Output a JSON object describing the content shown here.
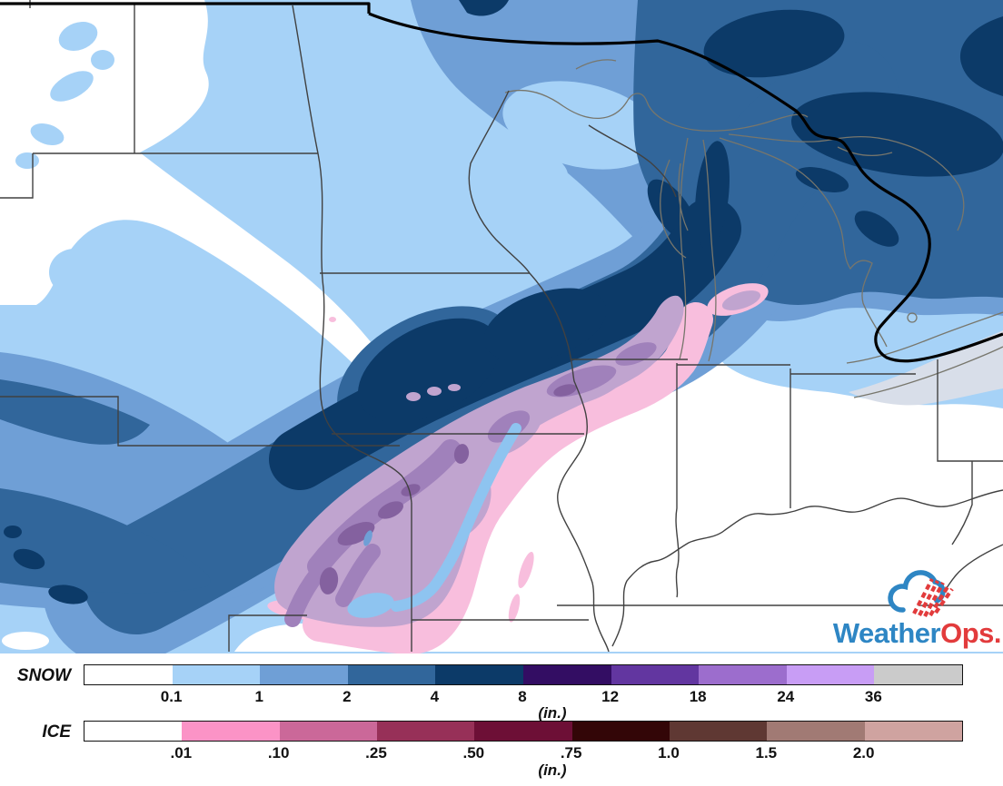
{
  "logo": {
    "text_primary": "Weather",
    "text_secondary": "Ops.",
    "primary_color": "#2E86C4",
    "secondary_color": "#E23B3C"
  },
  "legends": {
    "snow": {
      "label": "SNOW",
      "units_label": "(in.)",
      "tick_labels": [
        "0.1",
        "1",
        "2",
        "4",
        "8",
        "12",
        "18",
        "24",
        "36"
      ],
      "segment_palette_keys": [
        "snow_0",
        "snow_01",
        "snow_1",
        "snow_2",
        "snow_4",
        "snow_8",
        "snow_12",
        "snow_18",
        "snow_24",
        "snow_36"
      ]
    },
    "ice": {
      "label": "ICE",
      "units_label": "(in.)",
      "tick_labels": [
        ".01",
        ".10",
        ".25",
        ".50",
        ".75",
        "1.0",
        "1.5",
        "2.0"
      ],
      "segment_palette_keys": [
        "ice_0",
        "ice_01",
        "ice_10",
        "ice_25",
        "ice_50",
        "ice_75",
        "ice_1_0",
        "ice_1_5",
        "ice_2_0"
      ]
    }
  },
  "palette": {
    "snow_0": "#ffffff",
    "snow_01": "#a6d2f7",
    "snow_1": "#6f9fd6",
    "snow_2": "#31669b",
    "snow_4": "#0c3a68",
    "snow_8": "#330d63",
    "snow_12": "#6236a0",
    "snow_18": "#9c6dcd",
    "snow_24": "#c89df5",
    "snow_36": "#cbcbcb",
    "ice_0": "#ffffff",
    "ice_01": "#fb93c6",
    "ice_10": "#cb6899",
    "ice_25": "#973058",
    "ice_50": "#6d0f36",
    "ice_75": "#330607",
    "ice_1_0": "#5f3833",
    "ice_1_5": "#a17a74",
    "ice_2_0": "#cfa3a0",
    "map_ice_pink": "#f8bedd",
    "map_ice_mauve": "#c0a4cf",
    "map_ice_purple": "#a081bb",
    "map_ice_dark_purple": "#84619f",
    "map_ice_zone_blue": "#8ec4f0",
    "map_lake_gray": "#d8dee9",
    "map_state_border": "#414141",
    "map_shoreline": "#77766c",
    "map_intl_border": "#000000"
  }
}
